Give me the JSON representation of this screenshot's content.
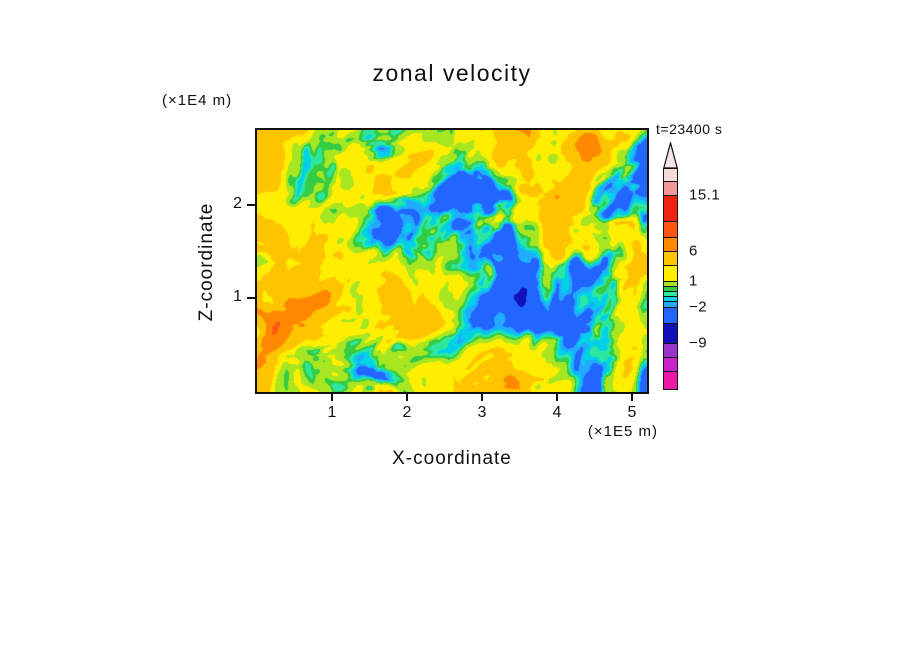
{
  "title": "zonal velocity",
  "time_label": "t=23400 s",
  "axes": {
    "x": {
      "label": "X-coordinate",
      "unit": "(×1E5 m)",
      "ticks": [
        "1",
        "2",
        "3",
        "4",
        "5"
      ],
      "tick_values": [
        1,
        2,
        3,
        4,
        5
      ],
      "range": [
        0,
        5.2
      ]
    },
    "z": {
      "label": "Z-coordinate",
      "unit": "(×1E4 m)",
      "ticks": [
        "1",
        "2"
      ],
      "tick_values": [
        1,
        2
      ],
      "range": [
        0,
        2.8
      ]
    }
  },
  "colorbar": {
    "bands": [
      {
        "color": "#f6d9d9",
        "height": 14
      },
      {
        "color": "#f09898",
        "height": 14
      },
      {
        "color": "#ee2211",
        "height": 26
      },
      {
        "color": "#ff5511",
        "height": 16
      },
      {
        "color": "#ff8800",
        "height": 14
      },
      {
        "color": "#ffc400",
        "height": 14
      },
      {
        "color": "#ffee00",
        "height": 16
      },
      {
        "color": "#a8e622",
        "height": 5
      },
      {
        "color": "#33cc44",
        "height": 5
      },
      {
        "color": "#2ee6a0",
        "height": 5
      },
      {
        "color": "#00d2e6",
        "height": 5
      },
      {
        "color": "#22aaff",
        "height": 6
      },
      {
        "color": "#2266ff",
        "height": 16
      },
      {
        "color": "#1111bb",
        "height": 20
      },
      {
        "color": "#9933cc",
        "height": 14
      },
      {
        "color": "#cc22cc",
        "height": 14
      },
      {
        "color": "#ee18a8",
        "height": 18
      }
    ],
    "labels": [
      {
        "text": "15.1",
        "after_band": 2
      },
      {
        "text": "6",
        "after_band": 5
      },
      {
        "text": "1",
        "after_band": 7
      },
      {
        "text": "−2",
        "after_band": 12
      },
      {
        "text": "−9",
        "after_band": 14
      }
    ]
  },
  "chart_data": {
    "type": "heatmap",
    "title": "zonal velocity",
    "xlabel": "X-coordinate",
    "x_unit": "(×1E5 m)",
    "ylabel": "Z-coordinate",
    "y_unit": "(×1E4 m)",
    "time_annotation": "t=23400 s",
    "xlim": [
      0,
      5.2
    ],
    "zlim": [
      0,
      2.8
    ],
    "x_ticks": [
      1,
      2,
      3,
      4,
      5
    ],
    "z_ticks": [
      1,
      2
    ],
    "colorbar_labels": [
      15.1,
      6,
      1,
      -2,
      -9
    ],
    "levels": [
      -15,
      -12,
      -9,
      -6,
      -2,
      -1.5,
      -1,
      -0.5,
      0,
      1,
      3,
      6,
      9,
      12,
      15.1,
      16
    ],
    "colors": [
      "#ee18a8",
      "#cc22cc",
      "#9933cc",
      "#1111bb",
      "#2266ff",
      "#22aaff",
      "#00d2e6",
      "#2ee6a0",
      "#33cc44",
      "#a8e622",
      "#ffee00",
      "#ffc400",
      "#ff8800",
      "#ff5511",
      "#ee2211",
      "#f09898",
      "#f6d9d9"
    ],
    "field_description": "Turbulent filled-contour cross-section of zonal velocity: broad warm (yellow/orange/red) region in the lower left, fine-scale mixed positive/negative eddies aloft, and tilted blue/cyan negative streaks concentrated toward the right half."
  }
}
